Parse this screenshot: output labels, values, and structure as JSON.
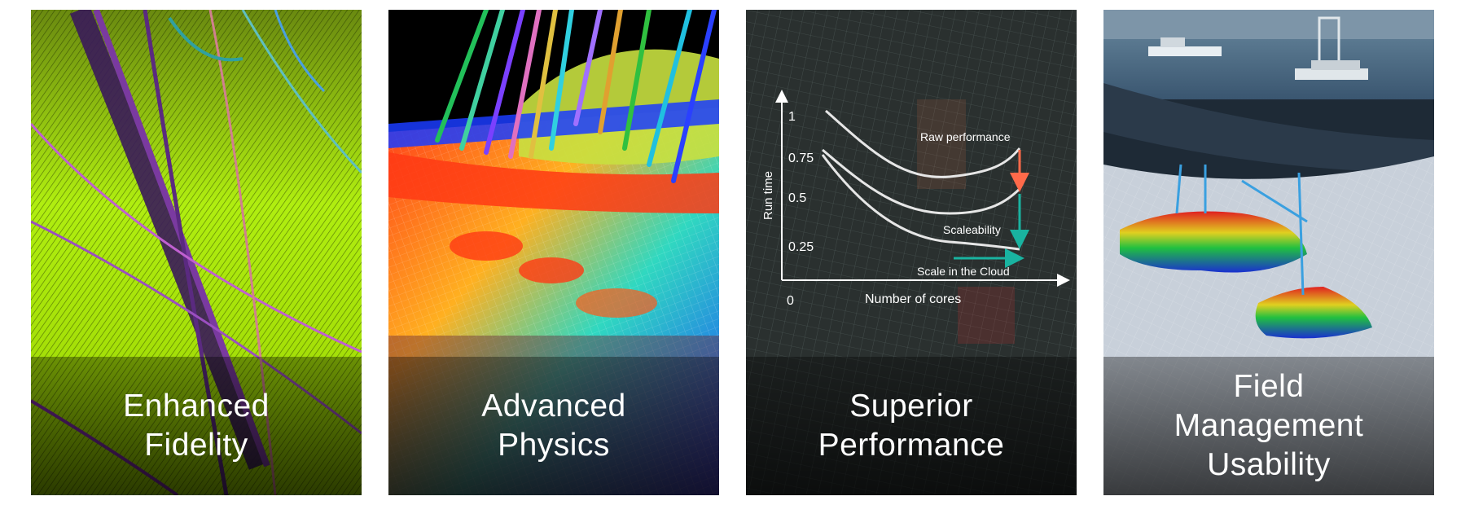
{
  "panels": [
    {
      "caption": [
        "Enhanced",
        "Fidelity"
      ],
      "colors": {
        "base": "#a5e600"
      }
    },
    {
      "caption": [
        "Advanced",
        "Physics"
      ],
      "colors": {
        "hot": "#ff3b1a",
        "cool": "#1a40ff"
      }
    },
    {
      "caption": [
        "Superior",
        "Performance"
      ],
      "chart": {
        "y_axis_label": "Run time",
        "x_axis_label": "Number of cores",
        "origin_label": "0",
        "y_ticks": [
          "1",
          "0.75",
          "0.5",
          "0.25"
        ],
        "annotations": {
          "raw": "Raw performance",
          "scale": "Scaleability",
          "cloud": "Scale in the Cloud"
        },
        "colors": {
          "raw_arrow": "#ff6a4a",
          "teal_arrow": "#19b3a0",
          "curve": "#e6e6e6"
        }
      }
    },
    {
      "caption": [
        "Field",
        "Management",
        "Usability"
      ],
      "colors": {
        "sea": "#4a6a85"
      }
    }
  ]
}
